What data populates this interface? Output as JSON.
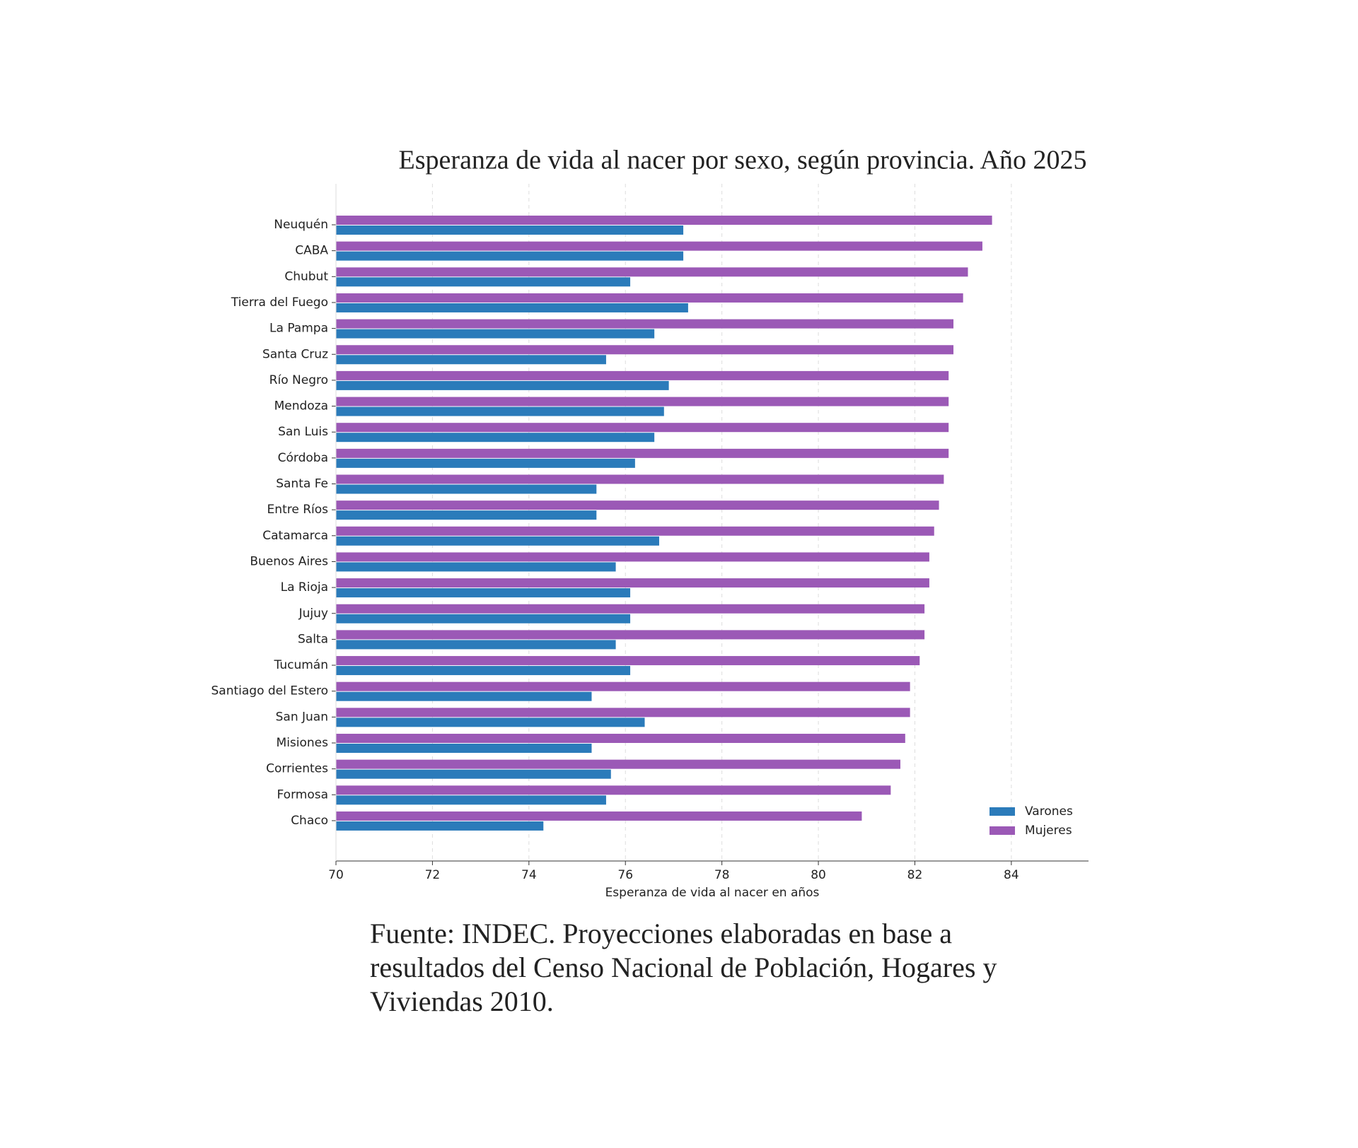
{
  "chart_data": {
    "type": "barh",
    "title": "Esperanza de vida al nacer por sexo, según provincia. Año 2025",
    "x_label": "Esperanza de vida al nacer en años",
    "source": [
      "Fuente: INDEC. Proyecciones elaboradas en base a",
      "resultados del Censo Nacional de Población, Hogares y",
      "Viviendas 2010."
    ],
    "categories": [
      "Neuquén",
      "CABA",
      "Chubut",
      "Tierra del Fuego",
      "La Pampa",
      "Santa Cruz",
      "Río Negro",
      "Mendoza",
      "San Luis",
      "Córdoba",
      "Santa Fe",
      "Entre Ríos",
      "Catamarca",
      "Buenos Aires",
      "La Rioja",
      "Jujuy",
      "Salta",
      "Tucumán",
      "Santiago del Estero",
      "San Juan",
      "Misiones",
      "Corrientes",
      "Formosa",
      "Chaco"
    ],
    "series": [
      {
        "name": "Varones",
        "color": "#2b7bba",
        "values": [
          77.2,
          77.2,
          76.1,
          77.3,
          76.6,
          75.6,
          76.9,
          76.8,
          76.6,
          76.2,
          75.4,
          75.4,
          76.7,
          75.8,
          76.1,
          76.1,
          75.8,
          76.1,
          75.3,
          76.4,
          75.3,
          75.7,
          75.6,
          74.3
        ]
      },
      {
        "name": "Mujeres",
        "color": "#9b59b6",
        "values": [
          83.6,
          83.4,
          83.1,
          83.0,
          82.8,
          82.8,
          82.7,
          82.7,
          82.7,
          82.7,
          82.6,
          82.5,
          82.4,
          82.3,
          82.3,
          82.2,
          82.2,
          82.1,
          81.9,
          81.9,
          81.8,
          81.7,
          81.5,
          80.9
        ]
      }
    ],
    "xlim": [
      70,
      85.6
    ],
    "xticks": [
      70,
      72,
      74,
      76,
      78,
      80,
      82,
      84
    ],
    "grid": true,
    "legend": "lower right"
  }
}
